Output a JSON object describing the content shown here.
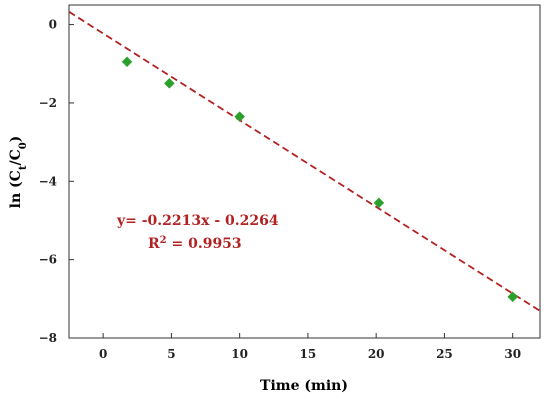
{
  "chart_data": {
    "type": "scatter",
    "xlabel": "Time (min)",
    "ylabel": "ln (Ct/C0)",
    "ylabel_parts": {
      "prefix": "ln (C",
      "sub1": "t",
      "mid": "/C",
      "sub2": "0",
      "suffix": ")"
    },
    "xlim": [
      -2.5,
      32
    ],
    "ylim": [
      -8,
      0.5
    ],
    "x_ticks": [
      0,
      5,
      10,
      15,
      20,
      25,
      30
    ],
    "y_ticks": [
      0,
      -2,
      -4,
      -6,
      -8
    ],
    "x_tick_labels": [
      "0",
      "5",
      "10",
      "15",
      "20",
      "25",
      "30"
    ],
    "y_tick_labels": [
      "0",
      "−2",
      "−4",
      "−6",
      "−8"
    ],
    "grid": false,
    "series": [
      {
        "marker": "diamond",
        "color": "#2ca02c",
        "points": [
          {
            "x": 1.75,
            "y": -0.95
          },
          {
            "x": 4.85,
            "y": -1.5
          },
          {
            "x": 10.0,
            "y": -2.35
          },
          {
            "x": 20.2,
            "y": -4.55
          },
          {
            "x": 30.0,
            "y": -6.95
          }
        ]
      }
    ],
    "fit_line": {
      "slope": -0.2213,
      "intercept": -0.2264,
      "color": "#b22222",
      "style": "dashed"
    },
    "annotations": {
      "equation": "y= -0.2213x - 0.2264",
      "r2_prefix": "R",
      "r2_sup": "2",
      "r2_suffix": " = 0.9953"
    }
  }
}
